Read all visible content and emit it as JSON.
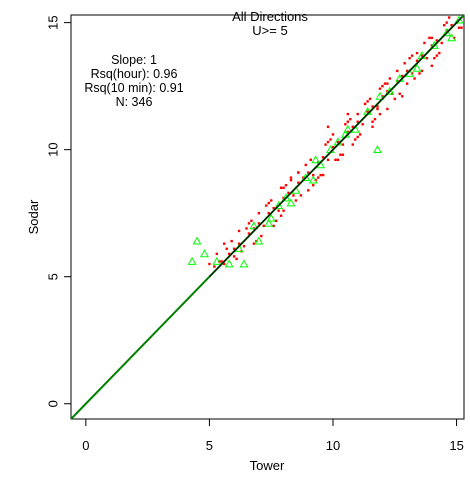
{
  "chart_data": {
    "type": "scatter",
    "title": "All Directions",
    "subtitle": "U>= 5",
    "xlabel": "Tower",
    "ylabel": "Sodar",
    "xlim": [
      -0.6,
      15.3
    ],
    "ylim": [
      -0.6,
      15.3
    ],
    "x_ticks": [
      0,
      5,
      10,
      15
    ],
    "y_ticks": [
      0,
      5,
      10,
      15
    ],
    "annotations": [
      "Slope: 1",
      "Rsq(hour): 0.96",
      "Rsq(10 min): 0.91",
      "N: 346"
    ],
    "series": [
      {
        "marker": "dot",
        "color": "#ff0000",
        "x": [
          5.2,
          5.4,
          5.6,
          5.8,
          6.0,
          6.2,
          6.4,
          6.6,
          6.8,
          7.0,
          7.2,
          7.4,
          7.6,
          7.8,
          8.0,
          8.2,
          8.4,
          8.6,
          8.8,
          9.0,
          9.2,
          9.4,
          9.6,
          9.8,
          10.0,
          10.2,
          10.4,
          10.6,
          10.8,
          11.0,
          11.2,
          11.4,
          11.6,
          11.8,
          12.0,
          12.2,
          12.4,
          12.6,
          12.8,
          13.0,
          13.2,
          13.4,
          13.6,
          13.8,
          14.0,
          14.2,
          14.4,
          14.6,
          14.8,
          15.0,
          5.3,
          5.7,
          6.1,
          6.5,
          6.9,
          7.3,
          7.7,
          8.1,
          8.5,
          8.9,
          9.3,
          9.7,
          10.1,
          10.5,
          10.9,
          11.3,
          11.7,
          12.1,
          12.5,
          12.9,
          13.3,
          13.7,
          14.1,
          14.5,
          14.9,
          5.5,
          5.9,
          6.3,
          6.7,
          7.1,
          7.5,
          7.9,
          8.3,
          8.7,
          9.1,
          9.5,
          9.9,
          10.3,
          10.7,
          11.1,
          11.5,
          11.9,
          12.3,
          12.7,
          13.1,
          13.5,
          13.9,
          14.3,
          14.7,
          15.1,
          5.0,
          5.6,
          6.2,
          6.8,
          7.4,
          8.0,
          8.6,
          9.2,
          9.8,
          10.4,
          11.0,
          11.6,
          12.2,
          12.8,
          13.4,
          14.0,
          14.6,
          6.0,
          7.0,
          8.0,
          9.0,
          10.0,
          11.0,
          12.0,
          13.0,
          14.0,
          6.6,
          7.6,
          8.6,
          9.6,
          10.6,
          11.6,
          12.6,
          13.6,
          8.3,
          9.4,
          10.8,
          11.4,
          12.2,
          13.2,
          14.2,
          15.2,
          7.9,
          9.1,
          10.2,
          11.9,
          9.8,
          10.6,
          11.8
        ],
        "y": [
          5.4,
          5.6,
          5.5,
          5.9,
          6.1,
          6.3,
          6.2,
          6.7,
          6.9,
          7.1,
          7.0,
          7.5,
          7.7,
          7.6,
          8.1,
          8.3,
          8.2,
          8.7,
          8.9,
          9.1,
          9.0,
          9.5,
          9.7,
          9.6,
          10.1,
          10.3,
          10.2,
          10.7,
          10.9,
          11.1,
          11.0,
          11.5,
          11.7,
          11.6,
          12.1,
          12.3,
          12.2,
          12.7,
          12.9,
          13.1,
          13.0,
          13.5,
          13.7,
          13.6,
          14.1,
          14.3,
          14.2,
          14.7,
          14.9,
          15.0,
          5.9,
          6.1,
          5.7,
          6.9,
          6.4,
          7.8,
          7.2,
          8.6,
          8.0,
          9.4,
          8.8,
          10.2,
          9.6,
          11.0,
          10.4,
          11.8,
          11.2,
          12.6,
          12.0,
          13.4,
          12.8,
          14.2,
          13.6,
          14.9,
          14.4,
          5.6,
          6.4,
          6.0,
          7.2,
          6.6,
          8.0,
          7.4,
          8.8,
          8.2,
          9.6,
          9.0,
          10.4,
          9.8,
          11.2,
          10.6,
          12.0,
          11.4,
          12.8,
          12.2,
          13.6,
          13.0,
          14.4,
          13.8,
          15.2,
          14.8,
          5.5,
          6.3,
          6.8,
          6.3,
          7.9,
          7.6,
          9.1,
          8.6,
          10.3,
          9.8,
          11.4,
          10.9,
          12.6,
          12.1,
          13.8,
          13.3,
          15.0,
          5.8,
          7.5,
          8.5,
          8.4,
          10.6,
          10.5,
          12.5,
          12.6,
          14.4,
          7.1,
          7.0,
          9.1,
          9.0,
          11.1,
          11.1,
          13.1,
          13.1,
          8.9,
          8.9,
          10.2,
          11.9,
          11.6,
          13.7,
          13.7,
          14.8,
          8.5,
          9.6,
          9.6,
          12.4,
          10.9,
          11.4,
          11.7
        ]
      },
      {
        "marker": "open-triangle",
        "color": "#00ff00",
        "x": [
          4.5,
          4.3,
          4.8,
          5.3,
          5.8,
          6.4,
          6.2,
          7.0,
          7.5,
          7.8,
          8.1,
          8.3,
          8.5,
          8.9,
          9.2,
          9.5,
          9.9,
          10.2,
          10.5,
          10.9,
          11.4,
          11.8,
          12.3,
          12.7,
          13.1,
          13.6,
          14.1,
          14.6,
          15.1,
          7.4,
          9.3,
          11.9,
          13.4,
          14.8,
          6.8,
          10.6
        ],
        "y": [
          6.4,
          5.6,
          5.9,
          5.6,
          5.5,
          5.5,
          6.1,
          6.4,
          7.3,
          7.8,
          8.1,
          7.9,
          8.4,
          8.9,
          8.8,
          9.4,
          10.0,
          10.3,
          10.6,
          10.8,
          11.5,
          10.0,
          12.3,
          12.8,
          13.0,
          13.7,
          14.1,
          14.6,
          15.1,
          7.1,
          9.6,
          12.1,
          13.2,
          14.4,
          7.0,
          10.8
        ]
      }
    ],
    "fit_lines": [
      {
        "label": "Slope: 1",
        "slope": 1,
        "intercept": 0,
        "color": "#008000"
      },
      {
        "color": "#000000",
        "slope": 1,
        "intercept": 0
      }
    ]
  }
}
